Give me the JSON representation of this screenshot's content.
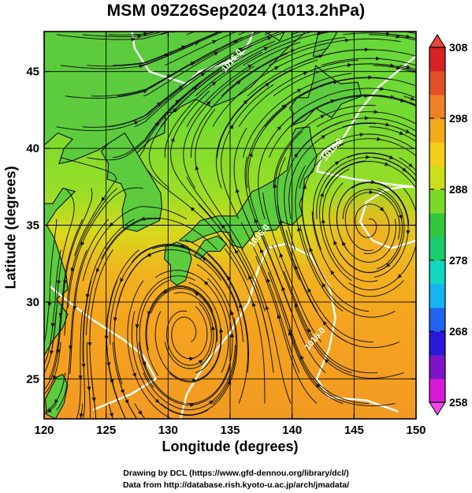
{
  "title": "MSM 09Z26Sep2024 (1013.2hPa)",
  "x_axis": {
    "label": "Longitude (degrees)",
    "range": [
      120,
      150
    ],
    "ticks": [
      {
        "value": 120,
        "label": "120"
      },
      {
        "value": 125,
        "label": "125"
      },
      {
        "value": 130,
        "label": "130"
      },
      {
        "value": 135,
        "label": "135"
      },
      {
        "value": 140,
        "label": "140"
      },
      {
        "value": 145,
        "label": "145"
      },
      {
        "value": 150,
        "label": "150"
      }
    ]
  },
  "y_axis": {
    "label": "Latitude  (degrees)",
    "range": [
      22.4,
      47.6
    ],
    "ticks": [
      {
        "value": 25,
        "label": "25"
      },
      {
        "value": 30,
        "label": "30"
      },
      {
        "value": 35,
        "label": "35"
      },
      {
        "value": 40,
        "label": "40"
      },
      {
        "value": 45,
        "label": "45"
      }
    ]
  },
  "colorbar": {
    "range": [
      258,
      308
    ],
    "ticks": [
      {
        "value": 258,
        "label": "258"
      },
      {
        "value": 268,
        "label": "268"
      },
      {
        "value": 278,
        "label": "278"
      },
      {
        "value": 288,
        "label": "288"
      },
      {
        "value": 298,
        "label": "298"
      },
      {
        "value": 308,
        "label": "308"
      }
    ],
    "colors": [
      "#d81ad8",
      "#7e14c8",
      "#2a18d8",
      "#1e64f0",
      "#14b4f0",
      "#10d8c0",
      "#18cc6c",
      "#30c83a",
      "#7cd826",
      "#ccde1a",
      "#f4ce18",
      "#f4a81c",
      "#f08028",
      "#e25028",
      "#d62220"
    ]
  },
  "contour_labels": [
    {
      "text": "1016.0",
      "lon": 135.3,
      "lat": 45.6
    },
    {
      "text": "1016.0",
      "lon": 143.4,
      "lat": 39.8
    },
    {
      "text": "1016.0",
      "lon": 137.5,
      "lat": 34.2
    },
    {
      "text": "1016.0",
      "lon": 142.0,
      "lat": 27.5
    }
  ],
  "footer": {
    "line1": "Drawing by DCL (https://www.gfd-dennou.org/library/dcl/)",
    "line2": "Data from http://database.rish.kyoto-u.ac.jp/arch/jmadata/"
  }
}
